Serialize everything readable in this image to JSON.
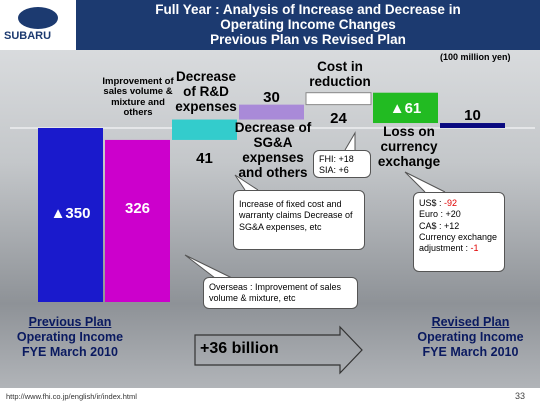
{
  "header": {
    "logo": "SUBARU",
    "title_lines": [
      "Full Year : Analysis of Increase and Decrease in",
      "Operating Income Changes",
      "Previous Plan vs Revised Plan"
    ]
  },
  "unit": "(100 million yen)",
  "chart_data": {
    "type": "waterfall",
    "categories": [
      null,
      "Improvement of sales volume & mixture and others",
      "Decrease of R&D expenses",
      "Decrease of SG&A expenses and others",
      "Cost in reduction",
      "Loss on currency exchange",
      null
    ],
    "values": [
      -350,
      326,
      41,
      30,
      24,
      -61,
      10
    ],
    "value_labels": [
      "▲350",
      "326",
      "41",
      "30",
      "24",
      "▲61",
      "10"
    ],
    "colors": [
      "#1a1acc",
      "#cc00cc",
      "#33cccc",
      "#a98ad8",
      "#ffffff",
      "#22bb22",
      "#0a0a80"
    ]
  },
  "callouts": {
    "fhi_sia": [
      "FHI: +18",
      "SIA: +6"
    ],
    "fixed_cost": "Increase of fixed cost and warranty claims Decrease of SG&A expenses, etc",
    "overseas": "Overseas : Improvement of sales volume & mixture, etc",
    "currency": [
      {
        "label": "US$ : ",
        "value": "-92"
      },
      {
        "label": "Euro : ",
        "value": "+20"
      },
      {
        "label": "CA$ : ",
        "value": "+12"
      },
      {
        "label": "Currency exchange adjustment : ",
        "value": "-1"
      }
    ]
  },
  "previous": {
    "title": "Previous Plan",
    "line1": "Operating Income",
    "line2": "FYE March 2010"
  },
  "revised": {
    "title": "Revised Plan",
    "line1": "Operating Income",
    "line2": "FYE March 2010"
  },
  "difference": "+36 billion",
  "footer": {
    "url": "http://www.fhi.co.jp/english/ir/index.html",
    "page": "33"
  }
}
